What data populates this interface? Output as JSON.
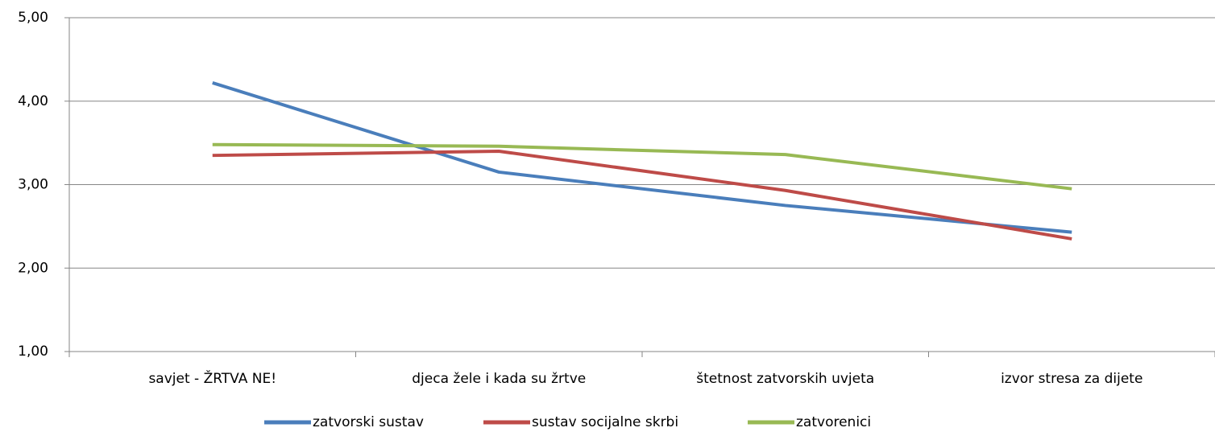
{
  "chart_data": {
    "type": "line",
    "categories": [
      "savjet - ŽRTVA NE!",
      "djeca žele i kada su žrtve",
      "štetnost zatvorskih uvjeta",
      "izvor stresa za dijete"
    ],
    "series": [
      {
        "name": "zatvorski sustav",
        "color": "#4a7ebb",
        "values": [
          4.22,
          3.15,
          2.75,
          2.43
        ]
      },
      {
        "name": "sustav socijalne skrbi",
        "color": "#be4b48",
        "values": [
          3.35,
          3.4,
          2.93,
          2.35
        ]
      },
      {
        "name": "zatvorenici",
        "color": "#98b954",
        "values": [
          3.48,
          3.46,
          3.36,
          2.95
        ]
      }
    ],
    "ylim": [
      1,
      5
    ],
    "yticks": [
      {
        "value": 1,
        "label": "1,00"
      },
      {
        "value": 2,
        "label": "2,00"
      },
      {
        "value": 3,
        "label": "3,00"
      },
      {
        "value": 4,
        "label": "4,00"
      },
      {
        "value": 5,
        "label": "5,00"
      }
    ],
    "grid": true,
    "legend": "bottom"
  }
}
